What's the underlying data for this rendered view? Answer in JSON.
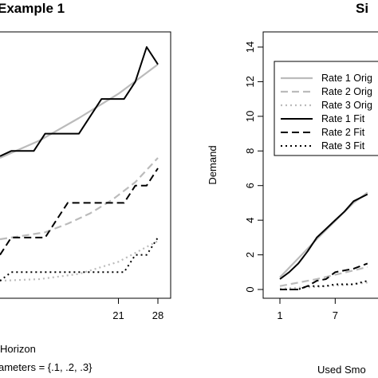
{
  "chart_data": [
    {
      "type": "line",
      "title": "Example 1",
      "xlabel": "Horizon",
      "subtitle": "ameters = {.1, .2, .3}",
      "ylabel": "",
      "x_ticks": [
        21,
        28
      ],
      "xlim": [
        0,
        28
      ],
      "ylim": [
        0,
        14
      ],
      "series": [
        {
          "style": "original",
          "color": "#bbbbbb",
          "dash": "solid",
          "x": [
            0,
            7,
            14,
            21,
            28
          ],
          "y": [
            7.6,
            8.6,
            9.9,
            11.3,
            13.0
          ]
        },
        {
          "style": "original",
          "color": "#bbbbbb",
          "dash": "long",
          "x": [
            0,
            4,
            8,
            12,
            16,
            20,
            24,
            28
          ],
          "y": [
            2.9,
            3.1,
            3.3,
            3.8,
            4.4,
            5.2,
            6.2,
            7.6
          ]
        },
        {
          "style": "original",
          "color": "#bbbbbb",
          "dash": "dotted",
          "x": [
            0,
            7,
            14,
            21,
            28
          ],
          "y": [
            0.5,
            0.6,
            0.9,
            1.6,
            2.8
          ]
        },
        {
          "style": "fit",
          "color": "#000000",
          "dash": "solid",
          "x": [
            0,
            2,
            4,
            6,
            8,
            10,
            12,
            14,
            16,
            18,
            20,
            22,
            24,
            26,
            28
          ],
          "y": [
            7.7,
            8.0,
            8.0,
            8.0,
            9.0,
            9.0,
            9.0,
            9.0,
            10.0,
            11.0,
            11.0,
            11.0,
            12.0,
            14.0,
            13.0
          ]
        },
        {
          "style": "fit",
          "color": "#000000",
          "dash": "long",
          "x": [
            0,
            2,
            4,
            6,
            8,
            10,
            12,
            14,
            16,
            18,
            20,
            22,
            24,
            26,
            28
          ],
          "y": [
            2.0,
            3.0,
            3.0,
            3.0,
            3.0,
            4.0,
            5.0,
            5.0,
            5.0,
            5.0,
            5.0,
            5.0,
            6.0,
            6.0,
            7.0
          ]
        },
        {
          "style": "fit",
          "color": "#000000",
          "dash": "dotted",
          "x": [
            0,
            2,
            4,
            6,
            8,
            10,
            12,
            14,
            16,
            18,
            20,
            22,
            24,
            26,
            28
          ],
          "y": [
            0.5,
            1.0,
            1.0,
            1.0,
            1.0,
            1.0,
            1.0,
            1.0,
            1.0,
            1.0,
            1.0,
            1.0,
            2.0,
            2.0,
            3.0
          ]
        }
      ]
    },
    {
      "type": "line",
      "title": "Si",
      "xlabel": "Used Smo",
      "ylabel": "Demand",
      "x_ticks": [
        1,
        7
      ],
      "y_ticks": [
        0,
        2,
        4,
        6,
        8,
        10,
        12,
        14
      ],
      "xlim": [
        1,
        28
      ],
      "ylim": [
        0,
        14
      ],
      "legend": {
        "placement": "top-left",
        "entries": [
          {
            "label": "Rate 1 Orig",
            "color": "#bbbbbb",
            "dash": "solid"
          },
          {
            "label": "Rate 2 Orig",
            "color": "#bbbbbb",
            "dash": "long"
          },
          {
            "label": "Rate 3 Orig",
            "color": "#bbbbbb",
            "dash": "dotted"
          },
          {
            "label": "Rate 1 Fit",
            "color": "#000000",
            "dash": "solid"
          },
          {
            "label": "Rate 2 Fit",
            "color": "#000000",
            "dash": "long"
          },
          {
            "label": "Rate 3 Fit",
            "color": "#000000",
            "dash": "dotted"
          }
        ]
      },
      "series": [
        {
          "style": "original",
          "color": "#bbbbbb",
          "dash": "solid",
          "x": [
            1,
            5,
            9,
            10.5
          ],
          "y": [
            0.7,
            2.9,
            5.0,
            5.6
          ]
        },
        {
          "style": "original",
          "color": "#bbbbbb",
          "dash": "long",
          "x": [
            1,
            5,
            9,
            10.5
          ],
          "y": [
            0.2,
            0.6,
            1.1,
            1.3
          ]
        },
        {
          "style": "original",
          "color": "#bbbbbb",
          "dash": "dotted",
          "x": [
            1,
            5,
            9,
            10.5
          ],
          "y": [
            0.05,
            0.15,
            0.3,
            0.4
          ]
        },
        {
          "style": "fit",
          "color": "#000000",
          "dash": "solid",
          "x": [
            1,
            2,
            3,
            4,
            5,
            6,
            7,
            8,
            9,
            10.5
          ],
          "y": [
            0.6,
            1.0,
            1.5,
            2.2,
            3.0,
            3.5,
            4.0,
            4.5,
            5.1,
            5.5
          ]
        },
        {
          "style": "fit",
          "color": "#000000",
          "dash": "long",
          "x": [
            1,
            3,
            4,
            5,
            6,
            7,
            8,
            9,
            10.5
          ],
          "y": [
            0.0,
            0.0,
            0.2,
            0.5,
            0.6,
            1.0,
            1.1,
            1.2,
            1.5
          ]
        },
        {
          "style": "fit",
          "color": "#000000",
          "dash": "dotted",
          "x": [
            1,
            3,
            4,
            6,
            7,
            9,
            10.5
          ],
          "y": [
            0.0,
            0.0,
            0.2,
            0.2,
            0.3,
            0.3,
            0.5
          ]
        }
      ]
    }
  ]
}
